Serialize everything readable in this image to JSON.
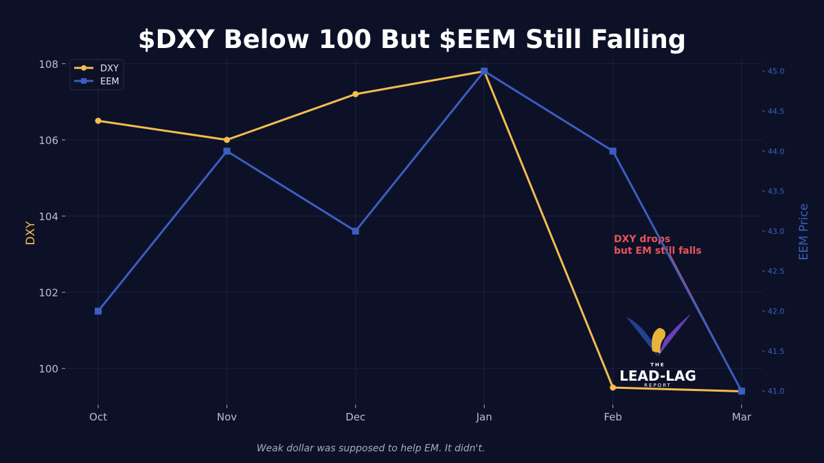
{
  "chart_data": {
    "type": "line",
    "title": "$DXY Below 100 But $EEM Still Falling",
    "caption": "Weak dollar was supposed to help EM. It didn't.",
    "categories": [
      "Oct",
      "Nov",
      "Dec",
      "Jan",
      "Feb",
      "Mar"
    ],
    "series": [
      {
        "name": "DXY",
        "axis": "left",
        "color": "#f5bd4f",
        "marker": "circle",
        "values": [
          106.5,
          106.0,
          107.2,
          107.8,
          99.5,
          99.4
        ]
      },
      {
        "name": "EEM",
        "axis": "right",
        "color": "#3b5fc0",
        "marker": "square",
        "values": [
          42.0,
          44.0,
          43.0,
          45.0,
          44.0,
          41.0
        ]
      }
    ],
    "ylabel_left": "DXY",
    "ylabel_right": "EEM Price",
    "ylim_left": [
      99.05,
      108.14
    ],
    "ylim_right": [
      40.83,
      45.16
    ],
    "yticks_left": [
      "100",
      "102",
      "104",
      "106",
      "108"
    ],
    "yticks_right": [
      "41.0",
      "41.5",
      "42.0",
      "42.5",
      "43.0",
      "43.5",
      "44.0",
      "44.5",
      "45.0"
    ],
    "annotation": {
      "lines": [
        "DXY drops",
        "but EM still falls"
      ],
      "color": "#e8545a",
      "points_to": "Mar"
    },
    "grid": true,
    "legend": "top-left",
    "colors": {
      "background": "#0d1128",
      "left_axis": "#f5bd4f",
      "right_axis": "#3b5fc0"
    }
  },
  "logo": {
    "line1": "THE",
    "line2": "LEAD-LAG",
    "line3": "REPORT"
  }
}
